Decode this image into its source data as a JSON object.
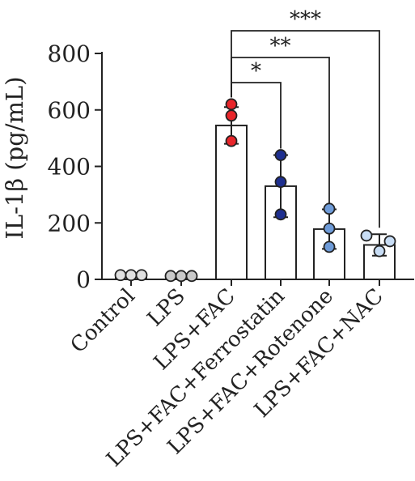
{
  "chart_data": {
    "type": "bar",
    "ylabel": "IL-1β (pg/mL)",
    "ylim": [
      0,
      800
    ],
    "yticks": [
      0,
      200,
      400,
      600,
      800
    ],
    "categories": [
      "Control",
      "LPS",
      "LPS+FAC",
      "LPS+FAC+Ferrostatin",
      "LPS+FAC+Rotenone",
      "LPS+FAC+NAC"
    ],
    "values": [
      15,
      12,
      545,
      330,
      178,
      122
    ],
    "errors": [
      0,
      0,
      65,
      110,
      70,
      38
    ],
    "points": [
      [
        15,
        15,
        15
      ],
      [
        12,
        12,
        12
      ],
      [
        620,
        580,
        490
      ],
      [
        440,
        345,
        230
      ],
      [
        250,
        180,
        115
      ],
      [
        155,
        135,
        100
      ]
    ],
    "point_colors": [
      "#e0e0e0",
      "#c9c9c9",
      "#e8262b",
      "#1e2f8f",
      "#6e9bd8",
      "#c8ddf5"
    ],
    "significance": [
      {
        "from": 2,
        "to": 3,
        "label": "*"
      },
      {
        "from": 2,
        "to": 4,
        "label": "**"
      },
      {
        "from": 2,
        "to": 5,
        "label": "***"
      }
    ]
  }
}
